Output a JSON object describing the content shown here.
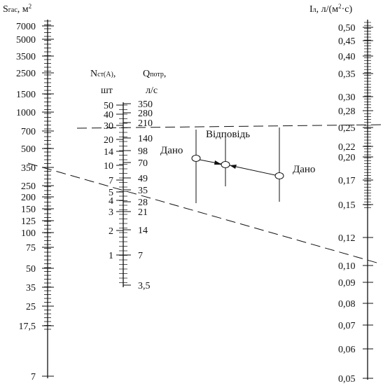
{
  "left_axis": {
    "title_main": "S",
    "title_sub": "гас",
    "title_unit": ", м",
    "title_sup": "2",
    "labels": [
      "7000",
      "5000",
      "3500",
      "2500",
      "1500",
      "1000",
      "700",
      "500",
      "350",
      "250",
      "200",
      "150",
      "125",
      "100",
      "75",
      "50",
      "35",
      "25",
      "17,5",
      "7"
    ]
  },
  "middle_axis": {
    "n_title_main": "N",
    "n_title_sub": "ст(А)",
    "n_title_tail": ",",
    "n_unit": "шт",
    "q_title_main": "Q",
    "q_title_sub": "потр",
    "q_title_tail": ",",
    "q_unit": "л/с",
    "n_labels": [
      "50",
      "40",
      "30",
      "20",
      "14",
      "10",
      "7",
      "5",
      "4",
      "3",
      "2",
      "1"
    ],
    "q_labels": [
      "350",
      "280",
      "210",
      "140",
      "98",
      "70",
      "49",
      "35",
      "28",
      "21",
      "14",
      "7",
      "3,5"
    ]
  },
  "right_axis": {
    "title_main": "I",
    "title_sub": "л",
    "title_unit": ", л/(м",
    "title_sup": "2",
    "title_tail": "·с)",
    "labels": [
      "0,50",
      "0,45",
      "0,40",
      "0,35",
      "0,30",
      "0,28",
      "0,25",
      "0,22",
      "0,20",
      "0,17",
      "0,15",
      "0,12",
      "0,10",
      "0,09",
      "0,08",
      "0,07",
      "0,06",
      "0,05"
    ]
  },
  "annotations": {
    "given_left": "Дано",
    "answer": "Відповідь",
    "given_right": "Дано"
  }
}
